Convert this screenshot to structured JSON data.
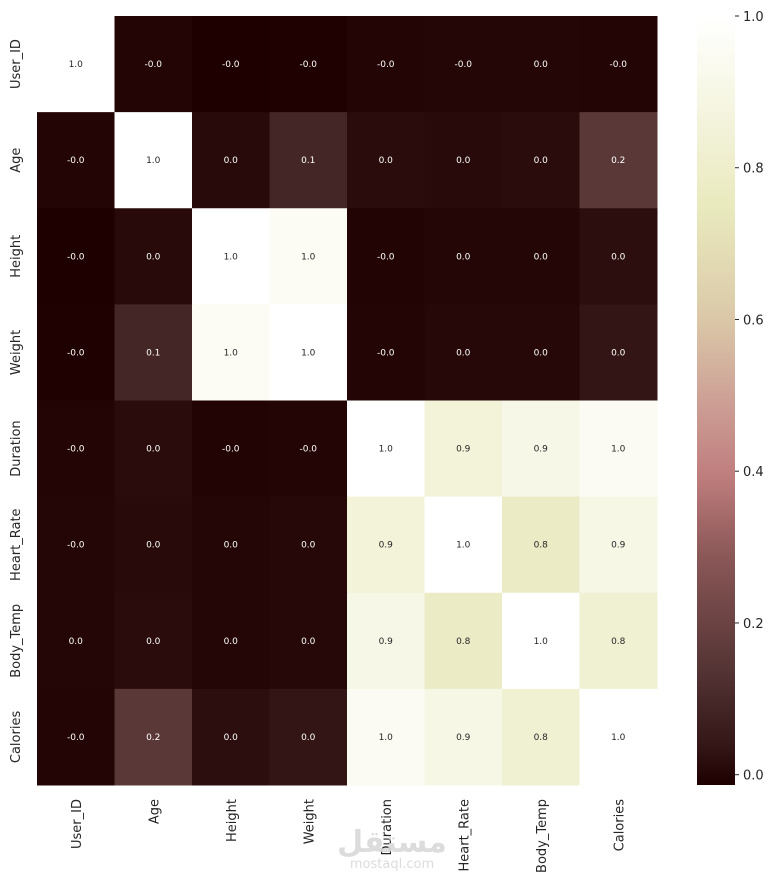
{
  "chart_data": {
    "type": "heatmap",
    "title": "",
    "xlabel": "",
    "ylabel": "",
    "rows": [
      "User_ID",
      "Age",
      "Height",
      "Weight",
      "Duration",
      "Heart_Rate",
      "Body_Temp",
      "Calories"
    ],
    "columns": [
      "User_ID",
      "Age",
      "Height",
      "Weight",
      "Duration",
      "Heart_Rate",
      "Body_Temp",
      "Calories"
    ],
    "values": [
      [
        1.0,
        -0.001827,
        -0.01352,
        -0.011603,
        -0.002751,
        -0.000457,
        0.000923,
        -0.001661
      ],
      [
        -0.001827,
        1.0,
        0.009554,
        0.090094,
        0.013247,
        0.010482,
        0.013175,
        0.154395
      ],
      [
        -0.01352,
        0.009554,
        1.0,
        0.958451,
        -0.004625,
        0.000528,
        0.0012,
        0.017537
      ],
      [
        -0.011603,
        0.090094,
        0.958451,
        1.0,
        -0.001884,
        0.004311,
        0.004095,
        0.035481
      ],
      [
        -0.002751,
        0.013247,
        -0.004625,
        -0.001884,
        1.0,
        0.852869,
        0.903167,
        0.955421
      ],
      [
        -0.000457,
        0.010482,
        0.000528,
        0.004311,
        0.852869,
        1.0,
        0.771529,
        0.897882
      ],
      [
        0.000923,
        0.013175,
        0.0012,
        0.004095,
        0.903167,
        0.771529,
        1.0,
        0.824558
      ],
      [
        -0.001661,
        0.154395,
        0.017537,
        0.035481,
        0.955421,
        0.897882,
        0.824558,
        1.0
      ]
    ],
    "annotations": [
      [
        "1.0",
        "-0.0",
        "-0.0",
        "-0.0",
        "-0.0",
        "-0.0",
        "0.0",
        "-0.0"
      ],
      [
        "-0.0",
        "1.0",
        "0.0",
        "0.1",
        "0.0",
        "0.0",
        "0.0",
        "0.2"
      ],
      [
        "-0.0",
        "0.0",
        "1.0",
        "1.0",
        "-0.0",
        "0.0",
        "0.0",
        "0.0"
      ],
      [
        "-0.0",
        "0.1",
        "1.0",
        "1.0",
        "-0.0",
        "0.0",
        "0.0",
        "0.0"
      ],
      [
        "-0.0",
        "0.0",
        "-0.0",
        "-0.0",
        "1.0",
        "0.9",
        "0.9",
        "1.0"
      ],
      [
        "-0.0",
        "0.0",
        "0.0",
        "0.0",
        "0.9",
        "1.0",
        "0.8",
        "0.9"
      ],
      [
        "0.0",
        "0.0",
        "0.0",
        "0.0",
        "0.9",
        "0.8",
        "1.0",
        "0.8"
      ],
      [
        "-0.0",
        "0.2",
        "0.0",
        "0.0",
        "1.0",
        "0.9",
        "0.8",
        "1.0"
      ]
    ],
    "colorbar": {
      "range": [
        -0.0136,
        1.0
      ],
      "ticks": [
        0.0,
        0.2,
        0.4,
        0.6,
        0.8,
        1.0
      ],
      "tick_labels": [
        "0.0",
        "0.2",
        "0.4",
        "0.6",
        "0.8",
        "1.0"
      ]
    },
    "colormap": "pink",
    "grid": false
  },
  "watermark": {
    "arabic": "مستقل",
    "domain": "mostaql.com"
  }
}
